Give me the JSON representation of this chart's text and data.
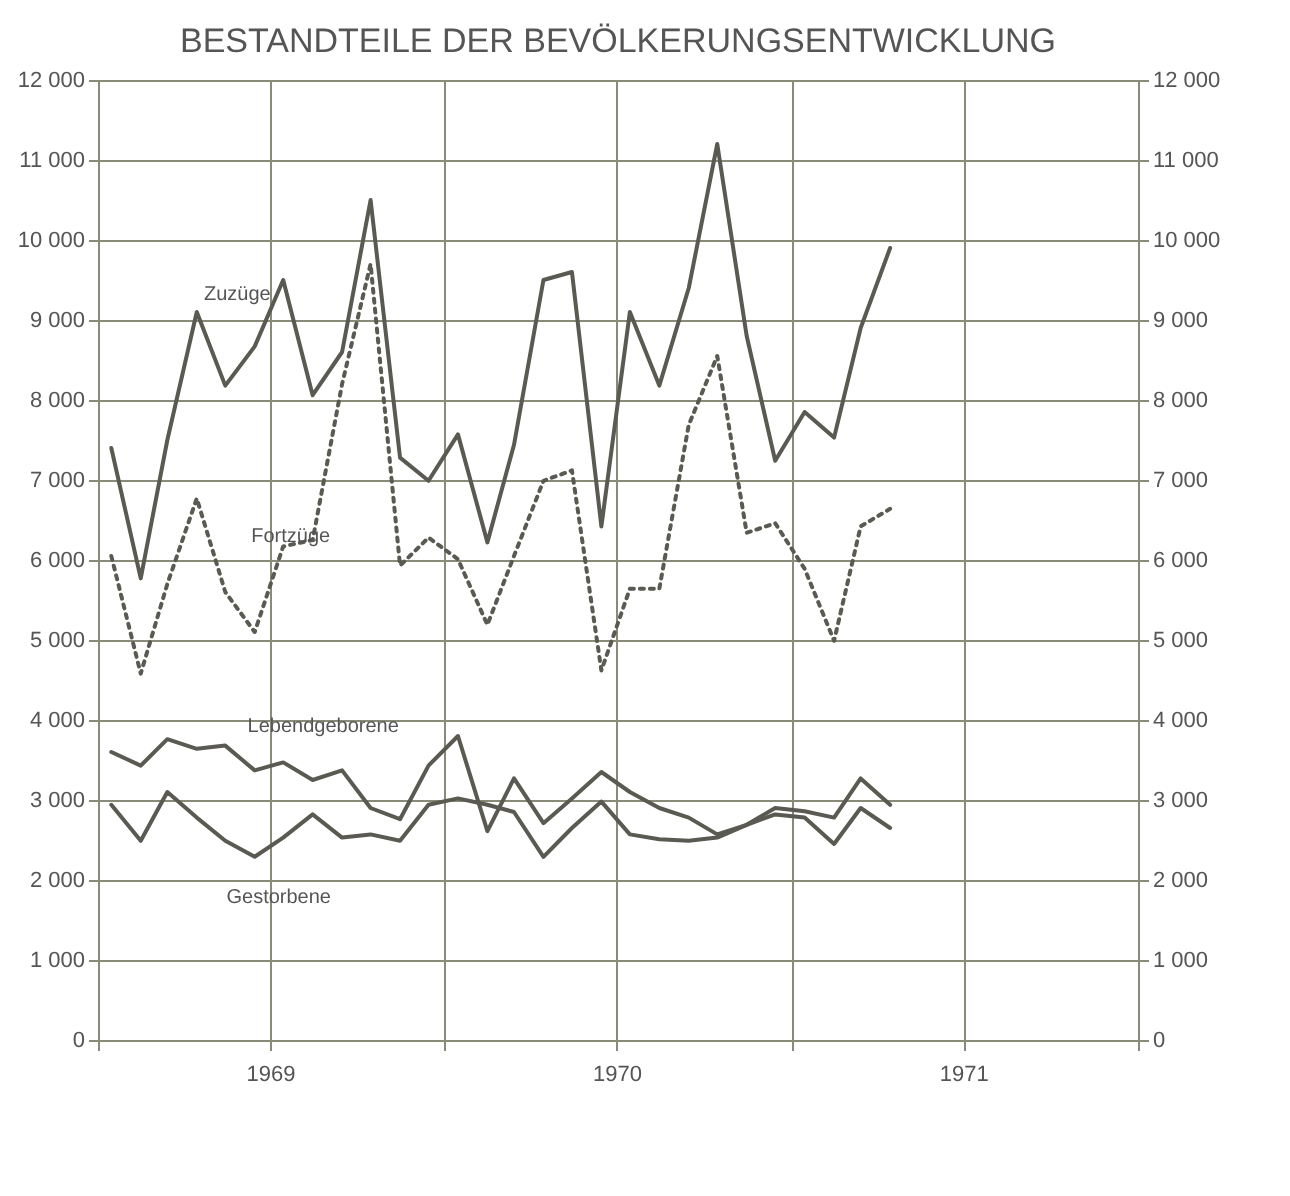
{
  "chart_data": {
    "type": "line",
    "title": "BESTANDTEILE DER BEVÖLKERUNGSENTWICKLUNG",
    "x": [
      "1969-01-15",
      "1969-02-15",
      "1969-03-15",
      "1969-04-15",
      "1969-05-15",
      "1969-06-15",
      "1969-07-15",
      "1969-08-15",
      "1969-09-15",
      "1969-10-15",
      "1969-11-15",
      "1969-12-15",
      "1970-01-15",
      "1970-02-15",
      "1970-03-15",
      "1970-04-15",
      "1970-05-15",
      "1970-06-15",
      "1970-07-15",
      "1970-08-15",
      "1970-09-15",
      "1970-10-15",
      "1970-11-15",
      "1970-12-15",
      "1971-01-15",
      "1971-02-15",
      "1971-03-15",
      "1971-04-15"
    ],
    "series": [
      {
        "name": "Zuzüge",
        "color": "#5a5a52",
        "line_style": "solid",
        "values": [
          7400,
          5770,
          7500,
          9100,
          8180,
          8670,
          9500,
          8060,
          8600,
          10500,
          7280,
          6990,
          7570,
          6220,
          7440,
          9500,
          9600,
          6420,
          9100,
          8180,
          9400,
          11200,
          8800,
          7240,
          7850,
          7530,
          8900,
          9900
        ]
      },
      {
        "name": "Fortzüge",
        "color": "#5a5a52",
        "line_style": "dotted",
        "values": [
          6050,
          4580,
          5700,
          6770,
          5600,
          5100,
          6170,
          6250,
          8200,
          9700,
          5930,
          6280,
          6010,
          5190,
          6050,
          6990,
          7120,
          4620,
          5640,
          5640,
          7690,
          8550,
          6340,
          6460,
          5890,
          4990,
          6420,
          6640
        ]
      },
      {
        "name": "Lebendgeborene",
        "color": "#5a5a52",
        "line_style": "solid",
        "values": [
          3600,
          3430,
          3760,
          3640,
          3680,
          3370,
          3470,
          3250,
          3370,
          2900,
          2760,
          3430,
          3800,
          2610,
          3270,
          2710,
          3020,
          3350,
          3100,
          2900,
          2780,
          2570,
          2690,
          2900,
          2860,
          2780,
          3270,
          2940
        ]
      },
      {
        "name": "Gestorbene",
        "color": "#5a5a52",
        "line_style": "solid",
        "values": [
          2940,
          2490,
          3100,
          2780,
          2490,
          2290,
          2530,
          2820,
          2530,
          2570,
          2490,
          2940,
          3020,
          2940,
          2850,
          2290,
          2650,
          2980,
          2570,
          2510,
          2490,
          2530,
          2690,
          2820,
          2780,
          2450,
          2900,
          2650
        ]
      }
    ],
    "xlim": [
      "1969-01",
      "1972-01"
    ],
    "xticks": [
      {
        "value": "1969-01",
        "label": null
      },
      {
        "value": "1969-07",
        "label": "1969"
      },
      {
        "value": "1970-01",
        "label": null
      },
      {
        "value": "1970-07",
        "label": "1970"
      },
      {
        "value": "1971-01",
        "label": null
      },
      {
        "value": "1971-07",
        "label": "1971"
      },
      {
        "value": "1972-01",
        "label": null
      }
    ],
    "ylim": [
      0,
      12000
    ],
    "yticks": [
      {
        "value": 0,
        "label": "0"
      },
      {
        "value": 1000,
        "label": "1 000"
      },
      {
        "value": 2000,
        "label": "2 000"
      },
      {
        "value": 3000,
        "label": "3 000"
      },
      {
        "value": 4000,
        "label": "4 000"
      },
      {
        "value": 5000,
        "label": "5 000"
      },
      {
        "value": 6000,
        "label": "6 000"
      },
      {
        "value": 7000,
        "label": "7 000"
      },
      {
        "value": 8000,
        "label": "8 000"
      },
      {
        "value": 9000,
        "label": "9 000"
      },
      {
        "value": 10000,
        "label": "10 000"
      },
      {
        "value": 11000,
        "label": "11 000"
      },
      {
        "value": 12000,
        "label": "12 000"
      }
    ],
    "y2lim": [
      0,
      12000
    ],
    "y2ticks": [
      {
        "value": 0,
        "label": "0"
      },
      {
        "value": 1000,
        "label": "1 000"
      },
      {
        "value": 2000,
        "label": "2 000"
      },
      {
        "value": 3000,
        "label": "3 000"
      },
      {
        "value": 4000,
        "label": "4 000"
      },
      {
        "value": 5000,
        "label": "5 000"
      },
      {
        "value": 6000,
        "label": "6 000"
      },
      {
        "value": 7000,
        "label": "7 000"
      },
      {
        "value": 8000,
        "label": "8 000"
      },
      {
        "value": 9000,
        "label": "9 000"
      },
      {
        "value": 10000,
        "label": "10 000"
      },
      {
        "value": 11000,
        "label": "11 000"
      },
      {
        "value": 12000,
        "label": "12 000"
      }
    ],
    "grid": true,
    "legend": false,
    "marker": "none"
  }
}
